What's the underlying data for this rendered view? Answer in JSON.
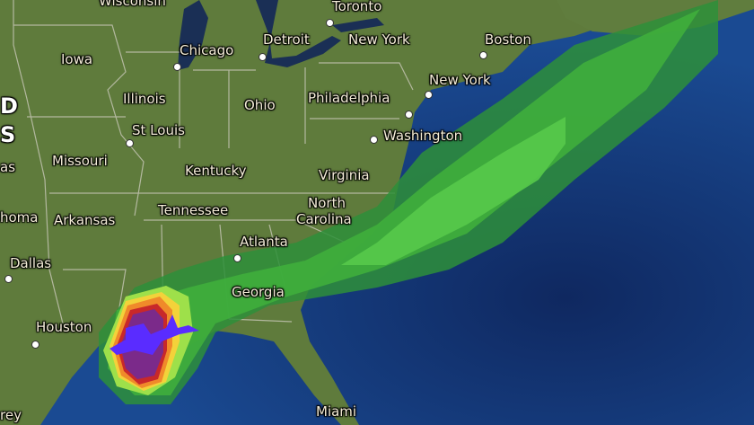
{
  "map": {
    "colors": {
      "land": "#5d7a3a",
      "ocean": "#163f86",
      "deep_ocean": "#102a63",
      "lakes": "#1a2f55",
      "borders": "#c8c8b8"
    },
    "precip_colors": [
      "#2e8f3a",
      "#3fae3c",
      "#57c94a",
      "#9ee04a",
      "#f3d23a",
      "#f08a2a",
      "#c8282a",
      "#7b2a8a",
      "#5a2cff"
    ],
    "labels": {
      "wisconsin": "Wisconsin",
      "toronto": "Toronto",
      "chicago": "Chicago",
      "detroit": "Detroit",
      "new_york_state": "New York",
      "boston": "Boston",
      "iowa": "Iowa",
      "new_york_city": "New York",
      "illinois": "Illinois",
      "ohio": "Ohio",
      "philadelphia": "Philadelphia",
      "united_d": "D",
      "united_s": "S",
      "st_louis": "St Louis",
      "washington": "Washington",
      "kansas": "as",
      "missouri": "Missouri",
      "kentucky": "Kentucky",
      "virginia": "Virginia",
      "north_carolina_1": "North",
      "north_carolina_2": "Carolina",
      "oklahoma": "homa",
      "arkansas": "Arkansas",
      "tennessee": "Tennessee",
      "atlanta": "Atlanta",
      "dallas": "Dallas",
      "georgia": "Georgia",
      "houston": "Houston",
      "miami": "Miami",
      "monterrey": "rey"
    }
  }
}
